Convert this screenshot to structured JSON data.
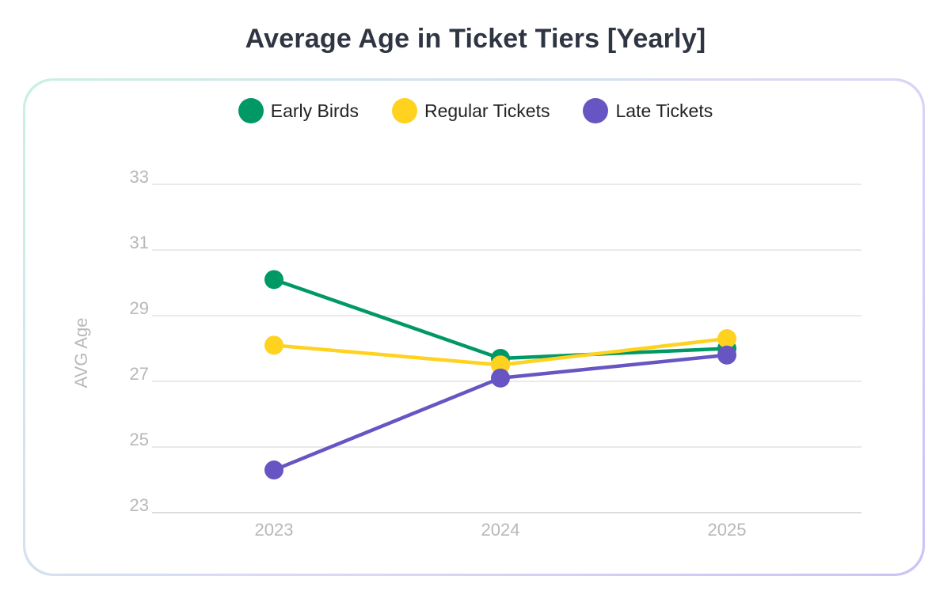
{
  "chart_data": {
    "type": "line",
    "title": "Average Age in Ticket Tiers [Yearly]",
    "xlabel": "",
    "ylabel": "AVG Age",
    "x": [
      "2023",
      "2024",
      "2025"
    ],
    "yticks": [
      "23",
      "25",
      "27",
      "29",
      "31",
      "33"
    ],
    "ylim": [
      23,
      33
    ],
    "grid": true,
    "legend_position": "top-center",
    "series": [
      {
        "name": "Early Birds",
        "color": "#009966",
        "values": [
          30.1,
          27.7,
          28.0
        ]
      },
      {
        "name": "Regular Tickets",
        "color": "#ffd21f",
        "values": [
          28.1,
          27.5,
          28.3
        ]
      },
      {
        "name": "Late Tickets",
        "color": "#6655c2",
        "values": [
          24.3,
          27.1,
          27.8
        ]
      }
    ]
  }
}
